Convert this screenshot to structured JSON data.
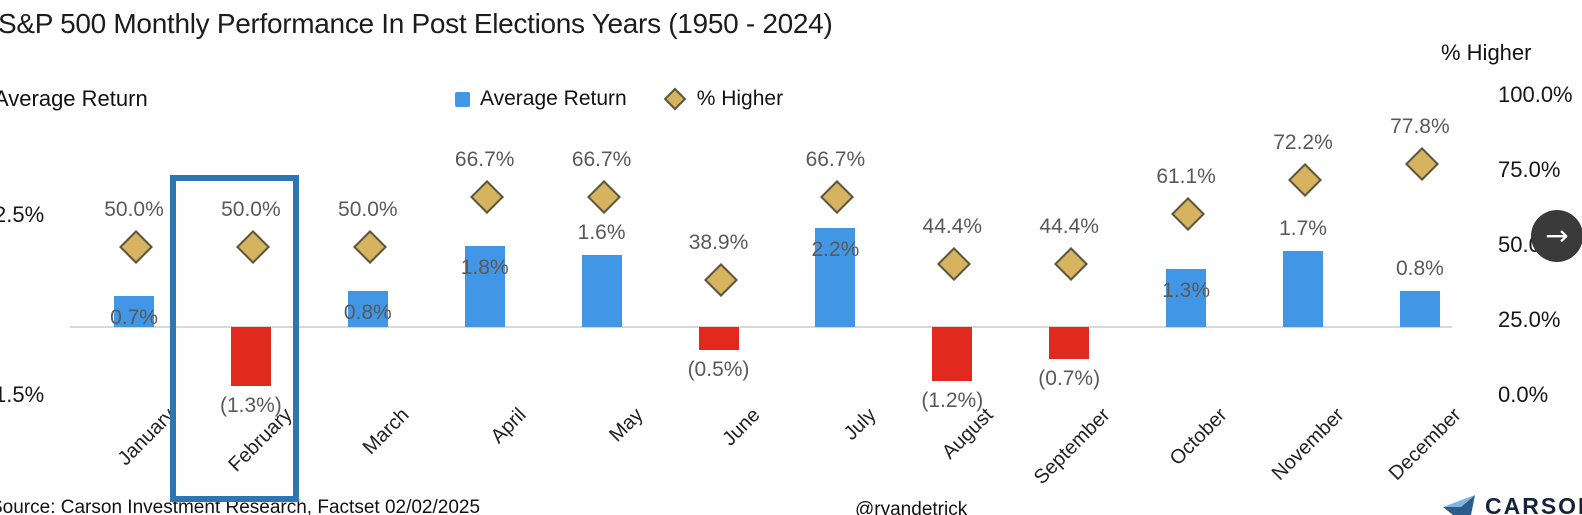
{
  "title": "S&P 500 Monthly Performance In Post Elections Years (1950 - 2024)",
  "legend": {
    "average_return_label": "Average Return",
    "pct_higher_label": "% Higher"
  },
  "left_axis": {
    "title": "Average Return",
    "ticks": [
      "2.5%",
      "1.5%"
    ]
  },
  "right_axis": {
    "title": "% Higher",
    "ticks": [
      "100.0%",
      "75.0%",
      "50.0%",
      "25.0%",
      "0.0%"
    ]
  },
  "chart_data": {
    "type": "bar",
    "title": "S&P 500 Monthly Performance In Post Elections Years (1950 - 2024)",
    "categories": [
      "January",
      "February",
      "March",
      "April",
      "May",
      "June",
      "July",
      "August",
      "September",
      "October",
      "November",
      "December"
    ],
    "series": [
      {
        "name": "Average Return",
        "type": "bar",
        "axis": "left",
        "values": [
          0.7,
          -1.3,
          0.8,
          1.8,
          1.6,
          -0.5,
          2.2,
          -1.2,
          -0.7,
          1.3,
          1.7,
          0.8
        ],
        "labels": [
          "0.7%",
          "(1.3%)",
          "0.8%",
          "1.8%",
          "1.6%",
          "(0.5%)",
          "2.2%",
          "(1.2%)",
          "(0.7%)",
          "1.3%",
          "1.7%",
          "0.8%"
        ]
      },
      {
        "name": "% Higher",
        "type": "scatter",
        "marker": "diamond",
        "axis": "right",
        "values": [
          50.0,
          50.0,
          50.0,
          66.7,
          66.7,
          38.9,
          66.7,
          44.4,
          44.4,
          61.1,
          72.2,
          77.8
        ],
        "labels": [
          "50.0%",
          "50.0%",
          "50.0%",
          "66.7%",
          "66.7%",
          "38.9%",
          "66.7%",
          "44.4%",
          "44.4%",
          "61.1%",
          "72.2%",
          "77.8%"
        ]
      }
    ],
    "left_axis_range_hint": [
      -1.5,
      2.5
    ],
    "right_axis_range": [
      0,
      100
    ],
    "grid": "zero-line-only",
    "legend_position": "top-center",
    "highlighted_category": "February"
  },
  "footer": {
    "source": "Source: Carson Investment Research, Factset 02/02/2025",
    "handle": "@ryandetrick",
    "logo_text": "CARSON"
  },
  "controls": {
    "next_arrow": "→"
  },
  "colors": {
    "positive_bar": "#4197E6",
    "negative_bar": "#E2291D",
    "diamond_fill": "#D6B35F",
    "diamond_border": "#5D5640",
    "highlight_box": "#2E75B6",
    "next_button_bg": "#3A3A3A",
    "zero_line": "#D8D8D8",
    "label_gray": "#595959"
  }
}
